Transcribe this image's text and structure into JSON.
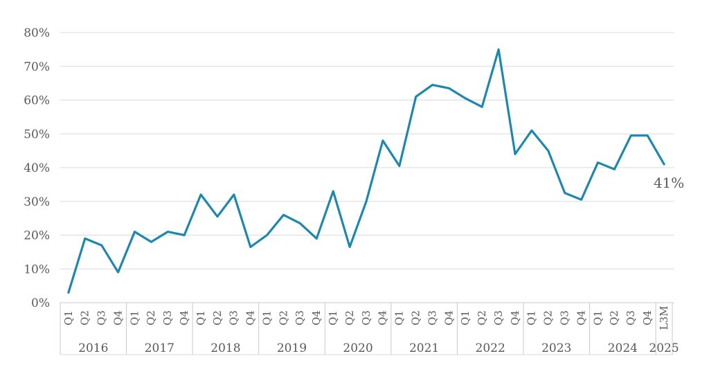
{
  "chart": {
    "background_color": "#ffffff",
    "line_color": "#1d87ae",
    "grid_color": "#d9d9d9",
    "axis_color": "#c9c9c9",
    "text_color": "#595959",
    "end_label_color": "#595959"
  },
  "chart_data": {
    "type": "line",
    "title": "",
    "xlabel": "",
    "ylabel": "",
    "ylim": [
      0,
      80
    ],
    "ytick_step": 10,
    "ytick_labels": [
      "0%",
      "10%",
      "20%",
      "30%",
      "40%",
      "50%",
      "60%",
      "70%",
      "80%"
    ],
    "grid": true,
    "legend": false,
    "series_name": "",
    "groups": [
      {
        "year": "2016",
        "quarters": [
          "Q1",
          "Q2",
          "Q3",
          "Q4"
        ],
        "values": [
          3,
          19,
          17,
          9
        ]
      },
      {
        "year": "2017",
        "quarters": [
          "Q1",
          "Q2",
          "Q3",
          "Q4"
        ],
        "values": [
          21,
          18,
          21,
          20
        ]
      },
      {
        "year": "2018",
        "quarters": [
          "Q1",
          "Q2",
          "Q3",
          "Q4"
        ],
        "values": [
          32,
          25.5,
          32,
          16.5
        ]
      },
      {
        "year": "2019",
        "quarters": [
          "Q1",
          "Q2",
          "Q3",
          "Q4"
        ],
        "values": [
          20,
          26,
          23.5,
          19
        ]
      },
      {
        "year": "2020",
        "quarters": [
          "Q1",
          "Q2",
          "Q3",
          "Q4"
        ],
        "values": [
          33,
          16.5,
          30,
          48
        ]
      },
      {
        "year": "2021",
        "quarters": [
          "Q1",
          "Q2",
          "Q3",
          "Q4"
        ],
        "values": [
          40.5,
          61,
          64.5,
          63.5
        ]
      },
      {
        "year": "2022",
        "quarters": [
          "Q1",
          "Q2",
          "Q3",
          "Q4"
        ],
        "values": [
          60.5,
          58,
          75,
          44
        ]
      },
      {
        "year": "2023",
        "quarters": [
          "Q1",
          "Q2",
          "Q3",
          "Q4"
        ],
        "values": [
          51,
          45,
          32.5,
          30.5
        ]
      },
      {
        "year": "2024",
        "quarters": [
          "Q1",
          "Q2",
          "Q3",
          "Q4"
        ],
        "values": [
          41.5,
          39.5,
          49.5,
          49.5
        ]
      },
      {
        "year": "2025",
        "quarters": [
          "L3M"
        ],
        "values": [
          41
        ]
      }
    ],
    "end_label": "41%"
  }
}
